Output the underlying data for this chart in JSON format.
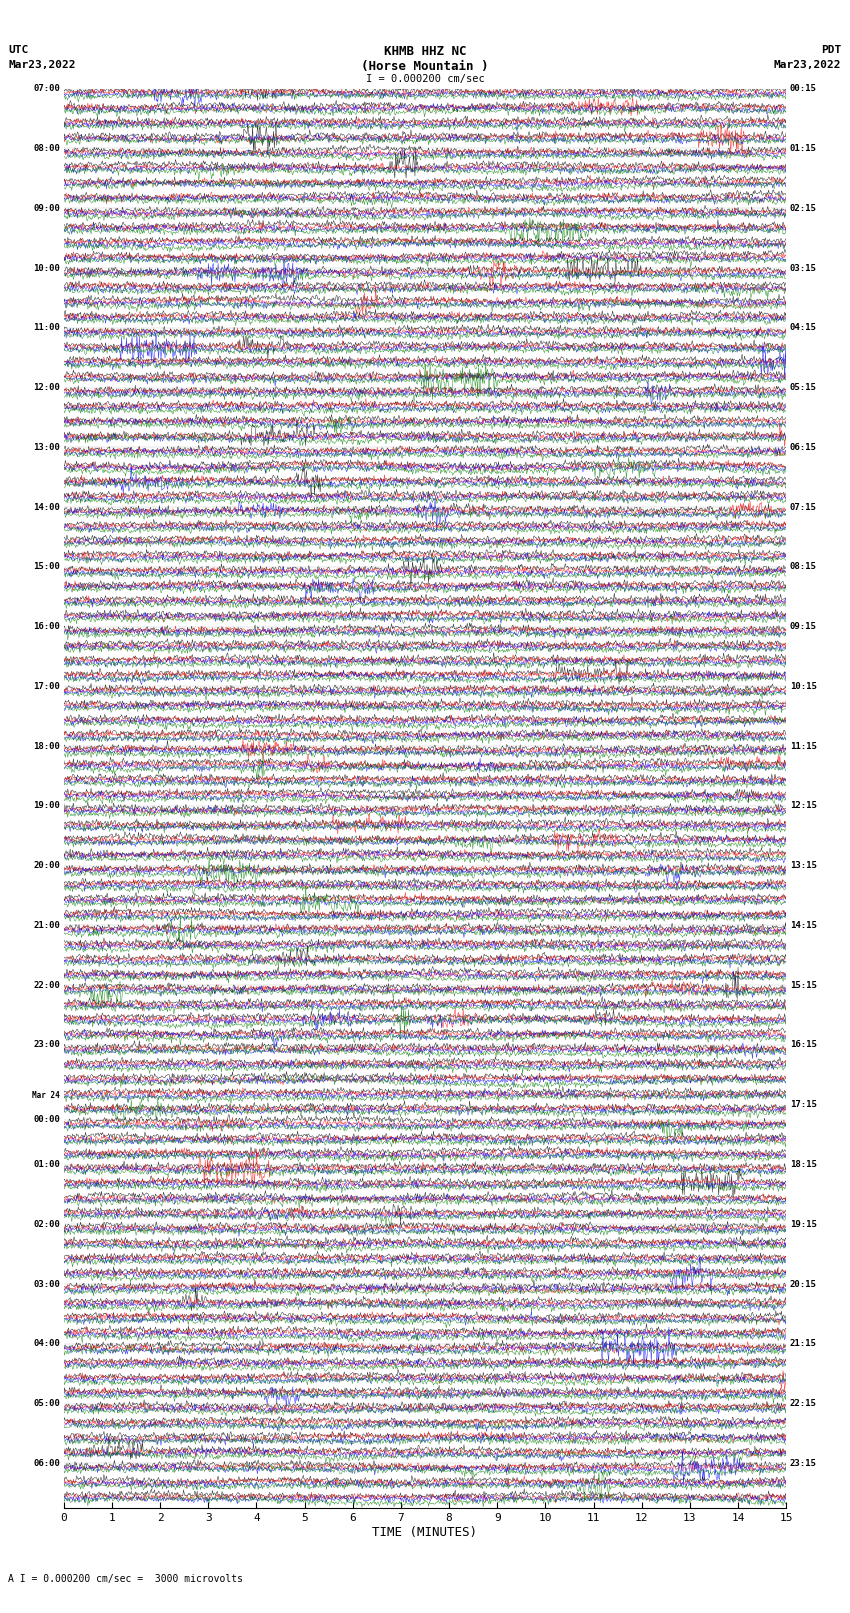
{
  "title_line1": "KHMB HHZ NC",
  "title_line2": "(Horse Mountain )",
  "title_line3": "I = 0.000200 cm/sec",
  "left_label_line1": "UTC",
  "left_label_line2": "Mar23,2022",
  "right_label_line1": "PDT",
  "right_label_line2": "Mar23,2022",
  "bottom_label": "TIME (MINUTES)",
  "scale_label": "A I = 0.000200 cm/sec =  3000 microvolts",
  "xlabel_ticks": [
    0,
    1,
    2,
    3,
    4,
    5,
    6,
    7,
    8,
    9,
    10,
    11,
    12,
    13,
    14,
    15
  ],
  "colors": [
    "black",
    "red",
    "blue",
    "green"
  ],
  "background_color": "white",
  "left_times_utc": [
    "07:00",
    "",
    "",
    "",
    "08:00",
    "",
    "",
    "",
    "09:00",
    "",
    "",
    "",
    "10:00",
    "",
    "",
    "",
    "11:00",
    "",
    "",
    "",
    "12:00",
    "",
    "",
    "",
    "13:00",
    "",
    "",
    "",
    "14:00",
    "",
    "",
    "",
    "15:00",
    "",
    "",
    "",
    "16:00",
    "",
    "",
    "",
    "17:00",
    "",
    "",
    "",
    "18:00",
    "",
    "",
    "",
    "19:00",
    "",
    "",
    "",
    "20:00",
    "",
    "",
    "",
    "21:00",
    "",
    "",
    "",
    "22:00",
    "",
    "",
    "",
    "23:00",
    "",
    "",
    "",
    "Mar 24",
    "00:00",
    "",
    "",
    "01:00",
    "",
    "",
    "",
    "02:00",
    "",
    "",
    "",
    "03:00",
    "",
    "",
    "",
    "04:00",
    "",
    "",
    "",
    "05:00",
    "",
    "",
    "",
    "06:00",
    "",
    ""
  ],
  "right_times_pdt": [
    "00:15",
    "",
    "",
    "",
    "01:15",
    "",
    "",
    "",
    "02:15",
    "",
    "",
    "",
    "03:15",
    "",
    "",
    "",
    "04:15",
    "",
    "",
    "",
    "05:15",
    "",
    "",
    "",
    "06:15",
    "",
    "",
    "",
    "07:15",
    "",
    "",
    "",
    "08:15",
    "",
    "",
    "",
    "09:15",
    "",
    "",
    "",
    "10:15",
    "",
    "",
    "",
    "11:15",
    "",
    "",
    "",
    "12:15",
    "",
    "",
    "",
    "13:15",
    "",
    "",
    "",
    "14:15",
    "",
    "",
    "",
    "15:15",
    "",
    "",
    "",
    "16:15",
    "",
    "",
    "",
    "17:15",
    "",
    "",
    "",
    "18:15",
    "",
    "",
    "",
    "19:15",
    "",
    "",
    "",
    "20:15",
    "",
    "",
    "",
    "21:15",
    "",
    "",
    "",
    "22:15",
    "",
    "",
    "",
    "23:15",
    "",
    ""
  ],
  "n_rows": 95,
  "n_traces_per_row": 4,
  "points_per_trace": 900,
  "amplitude_scale": 0.35,
  "noise_amplitude": 0.18,
  "event_rows": [
    12,
    28,
    45,
    62,
    75
  ],
  "event_amplitude": 1.2
}
